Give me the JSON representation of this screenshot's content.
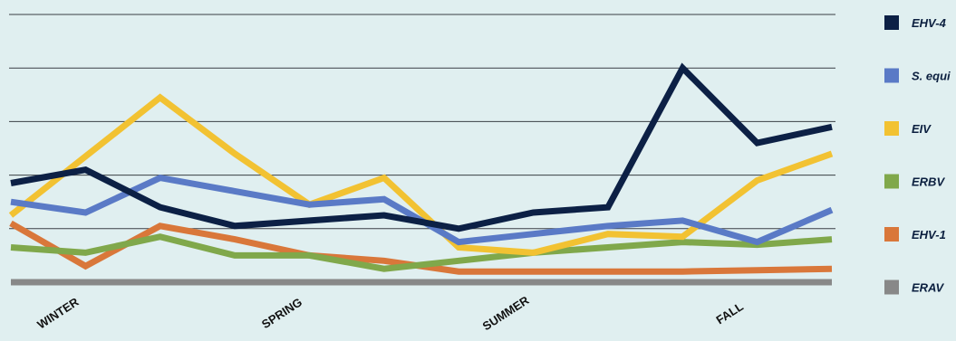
{
  "chart_data": {
    "type": "line",
    "title": "",
    "xlabel": "",
    "ylabel": "",
    "x_tick_labels": [
      "WINTER",
      "SPRING",
      "SUMMER",
      "FALL"
    ],
    "x_tick_index": [
      1,
      4,
      7,
      10
    ],
    "point_count": 12,
    "ylim": [
      0,
      10
    ],
    "gridlines": [
      2,
      4,
      6,
      8,
      10
    ],
    "grid": true,
    "legend_position": "right",
    "series": [
      {
        "name": "EHV-4",
        "color": "#0c2045",
        "values": [
          3.7,
          4.2,
          2.8,
          2.1,
          2.3,
          2.5,
          2.0,
          2.6,
          2.8,
          8.0,
          5.2,
          5.8
        ]
      },
      {
        "name": "S. equi",
        "color": "#5a7ac6",
        "values": [
          3.0,
          2.6,
          3.9,
          3.4,
          2.9,
          3.1,
          1.5,
          1.8,
          2.1,
          2.3,
          1.5,
          2.7
        ]
      },
      {
        "name": "EIV",
        "color": "#f2c232",
        "values": [
          2.5,
          4.7,
          6.9,
          4.8,
          2.9,
          3.9,
          1.3,
          1.1,
          1.8,
          1.7,
          3.8,
          4.8
        ]
      },
      {
        "name": "ERBV",
        "color": "#80a84b",
        "values": [
          1.3,
          1.1,
          1.7,
          1.0,
          1.0,
          0.5,
          0.8,
          1.1,
          1.3,
          1.5,
          1.4,
          1.6
        ]
      },
      {
        "name": "EHV-1",
        "color": "#d9773a",
        "values": [
          2.2,
          0.6,
          2.1,
          1.6,
          1.0,
          0.8,
          0.4,
          0.4,
          0.4,
          0.4,
          0.45,
          0.5
        ]
      },
      {
        "name": "ERAV",
        "color": "#888888",
        "values": [
          0,
          0,
          0,
          0,
          0,
          0,
          0,
          0,
          0,
          0,
          0,
          0
        ]
      }
    ]
  }
}
